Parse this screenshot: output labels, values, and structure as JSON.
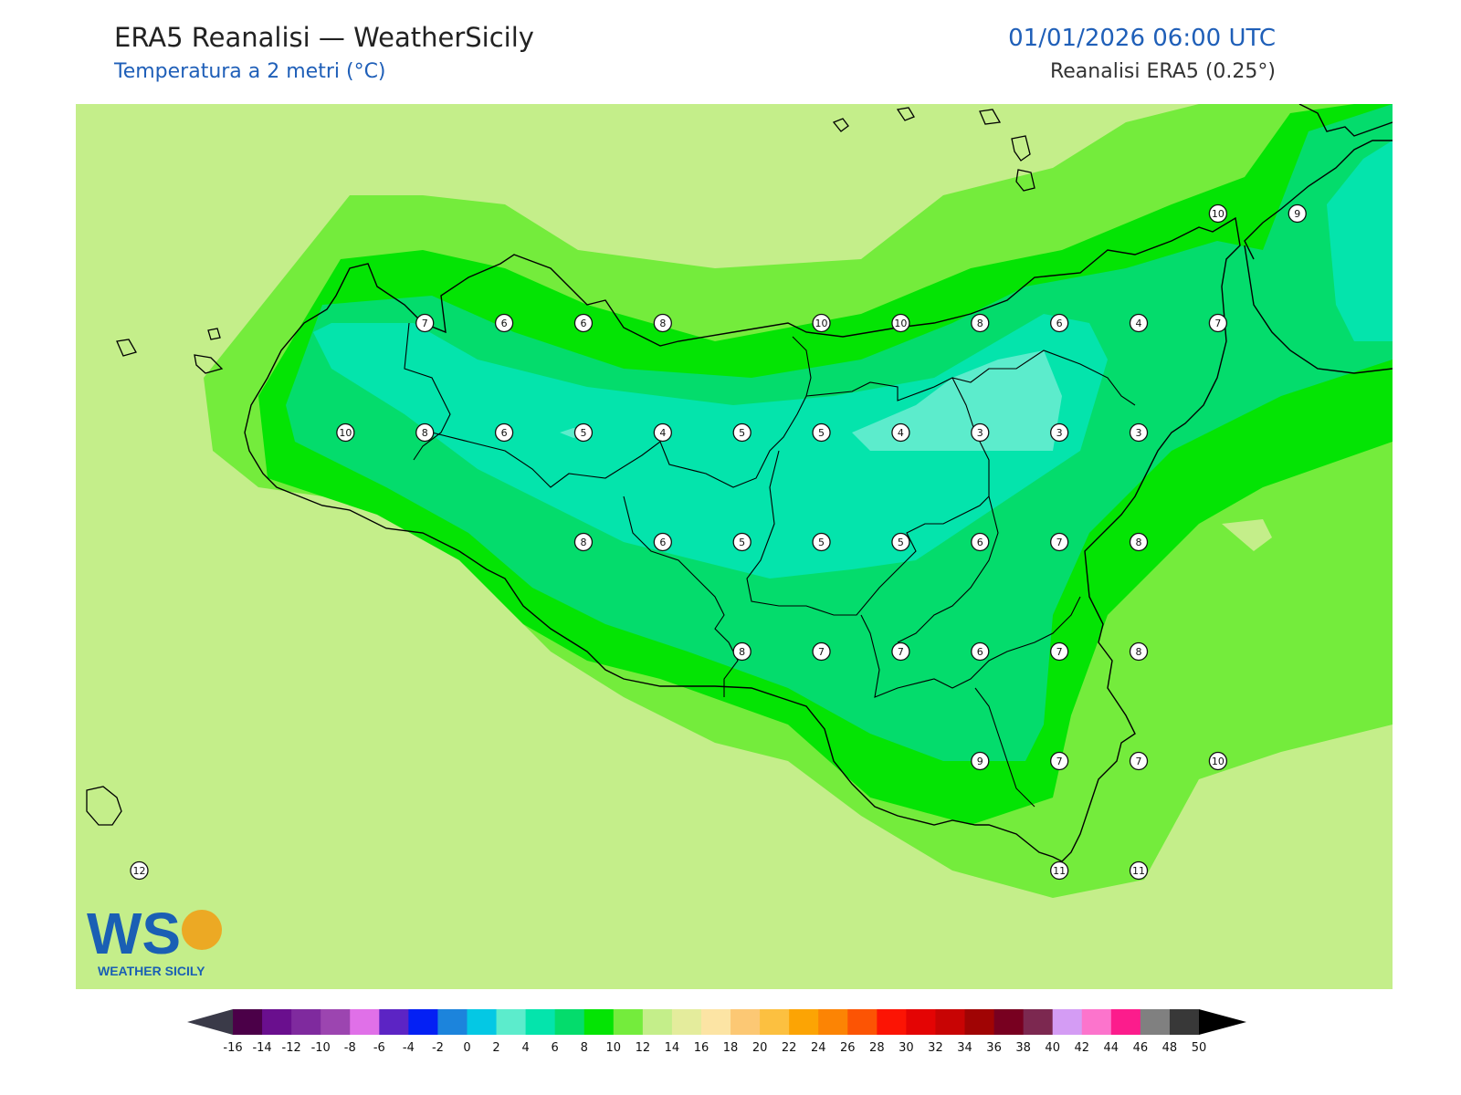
{
  "header": {
    "title": "ERA5 Reanalisi — WeatherSicily",
    "subtitle": "Temperatura a 2 metri (°C)",
    "datetime": "01/01/2026 06:00 UTC",
    "source": "Reanalisi ERA5 (0.25°)"
  },
  "logo": {
    "text": "WS",
    "caption": "WEATHER SICILY",
    "primary_color": "#1a5fb4",
    "secondary_color": "#f39c12"
  },
  "colors": {
    "sea_background": "#c4ee8a",
    "band_12_14": "#c4ee8a",
    "band_10_12": "#74ec3c",
    "band_8_10": "#04e404",
    "band_6_8": "#04dc6c",
    "band_4_6": "#04e4ac",
    "band_2_4": "#5ceccc",
    "coastline": "#000000"
  },
  "stations": [
    {
      "value": "7",
      "lon": 12.4,
      "lat": 38.05
    },
    {
      "value": "6",
      "lon": 12.9,
      "lat": 38.05
    },
    {
      "value": "6",
      "lon": 13.4,
      "lat": 38.05
    },
    {
      "value": "8",
      "lon": 13.9,
      "lat": 38.05
    },
    {
      "value": "10",
      "lon": 14.9,
      "lat": 38.05
    },
    {
      "value": "10",
      "lon": 15.4,
      "lat": 38.05
    },
    {
      "value": "8",
      "lon": 15.9,
      "lat": 38.05
    },
    {
      "value": "6",
      "lon": 16.4,
      "lat": 38.05
    },
    {
      "value": "4",
      "lon": 16.9,
      "lat": 38.05
    },
    {
      "value": "7",
      "lon": 17.4,
      "lat": 38.05
    },
    {
      "value": "10",
      "lon": 17.4,
      "lat": 38.65
    },
    {
      "value": "9",
      "lon": 17.9,
      "lat": 38.65
    },
    {
      "value": "10",
      "lon": 11.9,
      "lat": 37.45
    },
    {
      "value": "8",
      "lon": 12.4,
      "lat": 37.45
    },
    {
      "value": "6",
      "lon": 12.9,
      "lat": 37.45
    },
    {
      "value": "5",
      "lon": 13.4,
      "lat": 37.45
    },
    {
      "value": "4",
      "lon": 13.9,
      "lat": 37.45
    },
    {
      "value": "5",
      "lon": 14.4,
      "lat": 37.45
    },
    {
      "value": "5",
      "lon": 14.9,
      "lat": 37.45
    },
    {
      "value": "4",
      "lon": 15.4,
      "lat": 37.45
    },
    {
      "value": "3",
      "lon": 15.9,
      "lat": 37.45
    },
    {
      "value": "3",
      "lon": 16.4,
      "lat": 37.45
    },
    {
      "value": "3",
      "lon": 16.9,
      "lat": 37.45
    },
    {
      "value": "8",
      "lon": 13.4,
      "lat": 36.85
    },
    {
      "value": "6",
      "lon": 13.9,
      "lat": 36.85
    },
    {
      "value": "5",
      "lon": 14.4,
      "lat": 36.85
    },
    {
      "value": "5",
      "lon": 14.9,
      "lat": 36.85
    },
    {
      "value": "5",
      "lon": 15.4,
      "lat": 36.85
    },
    {
      "value": "6",
      "lon": 15.9,
      "lat": 36.85
    },
    {
      "value": "7",
      "lon": 16.4,
      "lat": 36.85
    },
    {
      "value": "8",
      "lon": 16.9,
      "lat": 36.85
    },
    {
      "value": "8",
      "lon": 14.4,
      "lat": 36.25
    },
    {
      "value": "7",
      "lon": 14.9,
      "lat": 36.25
    },
    {
      "value": "7",
      "lon": 15.4,
      "lat": 36.25
    },
    {
      "value": "6",
      "lon": 15.9,
      "lat": 36.25
    },
    {
      "value": "7",
      "lon": 16.4,
      "lat": 36.25
    },
    {
      "value": "8",
      "lon": 16.9,
      "lat": 36.25
    },
    {
      "value": "9",
      "lon": 15.9,
      "lat": 35.65
    },
    {
      "value": "7",
      "lon": 16.4,
      "lat": 35.65
    },
    {
      "value": "7",
      "lon": 16.9,
      "lat": 35.65
    },
    {
      "value": "10",
      "lon": 17.4,
      "lat": 35.65
    },
    {
      "value": "11",
      "lon": 16.4,
      "lat": 35.05
    },
    {
      "value": "11",
      "lon": 16.9,
      "lat": 35.05
    },
    {
      "value": "12",
      "lon": 10.6,
      "lat": 35.05
    }
  ],
  "colorbar": {
    "ticks": [
      "-16",
      "-14",
      "-12",
      "-10",
      "-8",
      "-6",
      "-4",
      "-2",
      "0",
      "2",
      "4",
      "6",
      "8",
      "10",
      "12",
      "14",
      "16",
      "18",
      "20",
      "22",
      "24",
      "26",
      "28",
      "30",
      "32",
      "34",
      "36",
      "38",
      "40",
      "42",
      "44",
      "46",
      "48",
      "50"
    ],
    "colors": [
      "#4b0048",
      "#6a0f8e",
      "#7f2a9e",
      "#9c45b0",
      "#e070e8",
      "#5c24c4",
      "#0420f4",
      "#1c84dc",
      "#04c8e4",
      "#5ceccc",
      "#04e4ac",
      "#04dc6c",
      "#04e404",
      "#74ec3c",
      "#c4ee8a",
      "#e4ec9c",
      "#fce4a4",
      "#fcc874",
      "#fcc040",
      "#fca404",
      "#fc8404",
      "#fc5404",
      "#fc1404",
      "#e40404",
      "#c80404",
      "#a00404",
      "#780020",
      "#7c2850",
      "#d49cf4",
      "#fc74cc",
      "#fc1c8c",
      "#808080",
      "#383838"
    ],
    "under_color": "#3a3a48",
    "over_color": "#000000"
  }
}
